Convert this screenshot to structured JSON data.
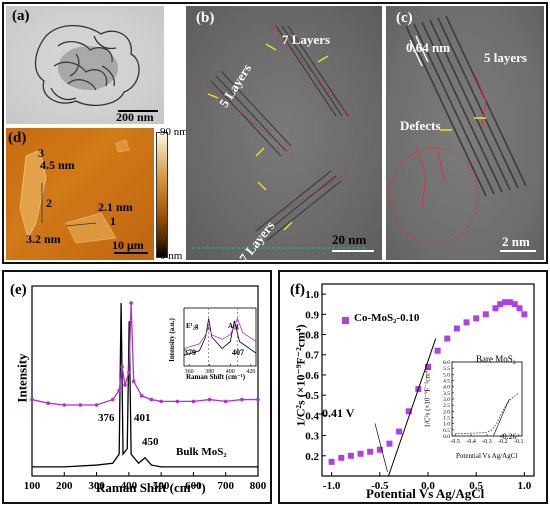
{
  "top": {
    "a": {
      "letter": "(a)",
      "scale": "200 nm"
    },
    "b": {
      "letter": "(b)",
      "label_top": "7 Layers",
      "label_mid": "5 Layers",
      "label_bot": "7 Layers",
      "scale": "20 nm"
    },
    "c": {
      "letter": "(c)",
      "spacing": "0.64 nm",
      "layers": "5 layers",
      "defects": "Defects",
      "scale": "2 nm"
    },
    "d": {
      "letter": "(d)",
      "marks": [
        "3",
        "4.5 nm",
        "2",
        "2.1 nm",
        "1",
        "3.2 nm"
      ],
      "scale": "10 μm",
      "colorbar": {
        "max": "90 nm",
        "min": "0 nm"
      }
    }
  },
  "chart_data": [
    {
      "type": "line",
      "panel": "(e)",
      "xlabel": "Raman Shift (cm⁻¹)",
      "ylabel": "Intensity",
      "xlim": [
        100,
        800
      ],
      "xticks": [
        100,
        200,
        300,
        400,
        500,
        600,
        700,
        800
      ],
      "series": [
        {
          "name": "Bulk MoS₂",
          "color": "#000000",
          "x": [
            100,
            200,
            300,
            350,
            370,
            376,
            382,
            395,
            401,
            407,
            430,
            450,
            470,
            500,
            600,
            700,
            800
          ],
          "y": [
            0.05,
            0.05,
            0.06,
            0.07,
            0.12,
            0.95,
            0.12,
            0.15,
            0.85,
            0.12,
            0.07,
            0.1,
            0.06,
            0.05,
            0.05,
            0.05,
            0.05
          ]
        },
        {
          "name": "Co-MoS₂-0.10",
          "color": "#b030d0",
          "x": [
            100,
            150,
            200,
            250,
            300,
            350,
            370,
            379,
            388,
            400,
            407,
            415,
            440,
            470,
            500,
            550,
            600,
            650,
            700,
            750,
            800
          ],
          "y": [
            0.42,
            0.4,
            0.39,
            0.39,
            0.39,
            0.42,
            0.47,
            0.6,
            0.5,
            0.57,
            0.95,
            0.52,
            0.44,
            0.42,
            0.41,
            0.41,
            0.41,
            0.42,
            0.41,
            0.42,
            0.42
          ]
        }
      ],
      "peak_labels": [
        "376",
        "401",
        "450"
      ],
      "series_label": "Bulk MoS₂",
      "inset": {
        "xlabel": "Raman Shift (cm⁻¹)",
        "ylabel": "Intensity (a.u.)",
        "xticks": [
          360,
          380,
          400,
          420
        ],
        "peak_labels": [
          "379",
          "407"
        ],
        "mode_labels": [
          "E¹₂g",
          "A₁g"
        ]
      }
    },
    {
      "type": "scatter",
      "panel": "(f)",
      "xlabel": "Potential Vs Ag/AgCl",
      "ylabel": "1/C²s (×10⁻⁹F⁻²cm⁴)",
      "xlim": [
        -1.1,
        1.1
      ],
      "ylim": [
        0.1,
        1.05
      ],
      "xticks": [
        -1.0,
        -0.5,
        0.0,
        0.5,
        1.0
      ],
      "yticks": [
        0.2,
        0.3,
        0.4,
        0.5,
        0.6,
        0.7,
        0.8,
        0.9,
        1.0
      ],
      "series": [
        {
          "name": "Co-MoS₂-0.10",
          "color": "#b040e0",
          "x": [
            -1.0,
            -0.9,
            -0.8,
            -0.7,
            -0.6,
            -0.5,
            -0.4,
            -0.3,
            -0.2,
            -0.1,
            0.0,
            0.1,
            0.2,
            0.3,
            0.4,
            0.5,
            0.6,
            0.7,
            0.75,
            0.8,
            0.85,
            0.9,
            0.95,
            1.0
          ],
          "y": [
            0.17,
            0.19,
            0.2,
            0.21,
            0.22,
            0.23,
            0.26,
            0.32,
            0.42,
            0.53,
            0.64,
            0.72,
            0.78,
            0.83,
            0.86,
            0.88,
            0.9,
            0.93,
            0.95,
            0.96,
            0.96,
            0.95,
            0.93,
            0.9
          ]
        }
      ],
      "fit_line": {
        "x": [
          -0.41,
          0.08
        ],
        "y": [
          0.1,
          0.78
        ]
      },
      "annotation": "-0.41 V",
      "inset": {
        "title": "Bare MoS₂",
        "ylabel": "1/C²s (×10⁻⁹F⁻²cm⁴)",
        "xlabel": "Potential Vs Ag/AgCl",
        "xticks": [
          -0.5,
          -0.4,
          -0.3,
          -0.2,
          -0.1
        ],
        "yticks": [
          0.0,
          0.5,
          1.0,
          1.5,
          2.0,
          2.5,
          3.0,
          3.5,
          4.0,
          4.5,
          5.0,
          5.5,
          6.0
        ],
        "ylim": [
          0,
          6.0
        ],
        "annotation": "-0.26",
        "x": [
          -0.5,
          -0.45,
          -0.4,
          -0.35,
          -0.3,
          -0.27,
          -0.24,
          -0.21,
          -0.18,
          -0.15,
          -0.12,
          -0.1
        ],
        "y": [
          0.2,
          0.2,
          0.22,
          0.25,
          0.3,
          0.5,
          1.0,
          1.8,
          2.5,
          3.0,
          3.3,
          3.5
        ]
      }
    }
  ]
}
